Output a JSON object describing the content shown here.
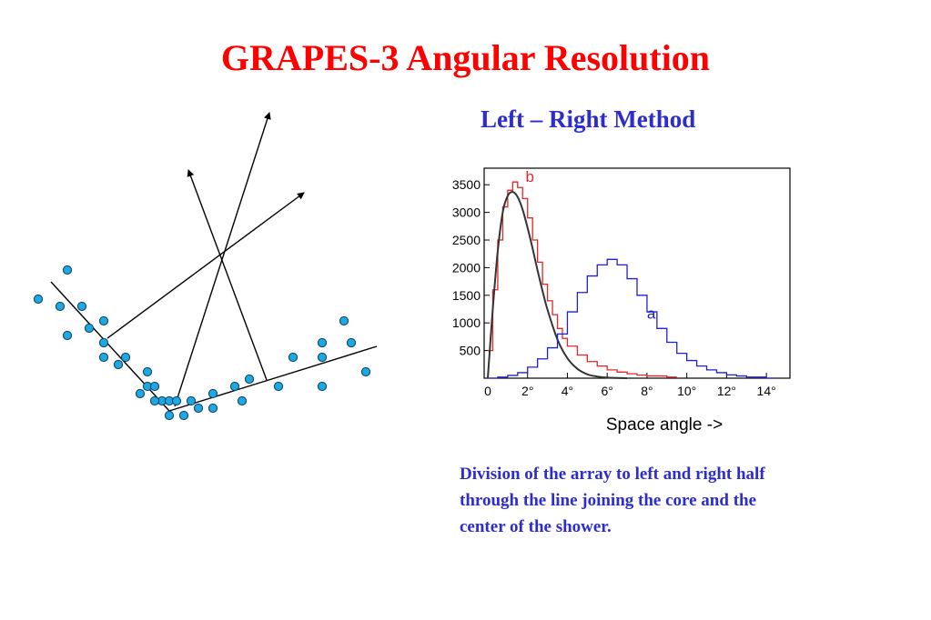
{
  "title": "GRAPES-3 Angular Resolution",
  "subtitle": "Left – Right Method",
  "caption": "Division of the array to left and right half through the line joining the core and the center of the shower.",
  "colors": {
    "title": "#ff0000",
    "text": "#2c2ccf",
    "detector": "#1ea7e1",
    "series_a": "#1f1fd4",
    "series_b": "#e32626",
    "fit": "#333333"
  },
  "chart_data": {
    "type": "line",
    "title": "",
    "xlabel": "Space angle ->",
    "ylabel": "",
    "xlim": [
      0,
      15
    ],
    "ylim": [
      0,
      3800
    ],
    "xticks": [
      0,
      2,
      4,
      6,
      8,
      10,
      12,
      14
    ],
    "xtick_labels": [
      "0",
      "2°",
      "4°",
      "6°",
      "8°",
      "10°",
      "12°",
      "14°"
    ],
    "yticks": [
      500,
      1000,
      1500,
      2000,
      2500,
      3000,
      3500
    ],
    "ytick_labels": [
      "500",
      "1000",
      "1500",
      "2000",
      "2500",
      "3000",
      "3500"
    ],
    "grid": false,
    "series": [
      {
        "name": "b",
        "style": "step",
        "color": "#e32626",
        "x": [
          0,
          0.25,
          0.5,
          0.75,
          1.0,
          1.25,
          1.5,
          1.75,
          2.0,
          2.25,
          2.5,
          2.75,
          3.0,
          3.25,
          3.5,
          3.75,
          4.0,
          4.5,
          5.0,
          5.5,
          6.0,
          6.5,
          7.0,
          7.5,
          8.0,
          9.0
        ],
        "y": [
          500,
          1600,
          2500,
          3100,
          3400,
          3550,
          3450,
          3250,
          2900,
          2500,
          2100,
          1700,
          1400,
          1150,
          900,
          720,
          580,
          420,
          300,
          220,
          150,
          110,
          80,
          55,
          40,
          20
        ]
      },
      {
        "name": "fit",
        "style": "smooth",
        "color": "#333333",
        "x": [
          0,
          0.25,
          0.5,
          0.75,
          1.0,
          1.25,
          1.5,
          1.75,
          2.0,
          2.25,
          2.5,
          2.75,
          3.0,
          3.5,
          4.0,
          4.5,
          5.0,
          5.5,
          6.0,
          7.0
        ],
        "y": [
          0,
          1250,
          2300,
          3000,
          3300,
          3370,
          3280,
          3050,
          2720,
          2350,
          1950,
          1580,
          1240,
          700,
          360,
          170,
          70,
          30,
          10,
          0
        ]
      },
      {
        "name": "a",
        "style": "step",
        "color": "#1f1fd4",
        "x": [
          0,
          0.5,
          1.0,
          1.5,
          2.0,
          2.5,
          3.0,
          3.5,
          4.0,
          4.5,
          5.0,
          5.5,
          6.0,
          6.5,
          7.0,
          7.5,
          8.0,
          8.5,
          9.0,
          9.5,
          10.0,
          10.5,
          11.0,
          11.5,
          12.0,
          12.5,
          13.0,
          14.0
        ],
        "y": [
          0,
          20,
          50,
          100,
          200,
          350,
          550,
          800,
          1200,
          1550,
          1850,
          2050,
          2150,
          2050,
          1800,
          1500,
          1200,
          900,
          650,
          450,
          320,
          220,
          150,
          100,
          60,
          40,
          20,
          0
        ]
      }
    ],
    "annotations": [
      {
        "text": "b",
        "series": "b",
        "x": 1.9,
        "y": 3550
      },
      {
        "text": "a",
        "series": "a",
        "x": 8.0,
        "y": 1080
      }
    ]
  }
}
